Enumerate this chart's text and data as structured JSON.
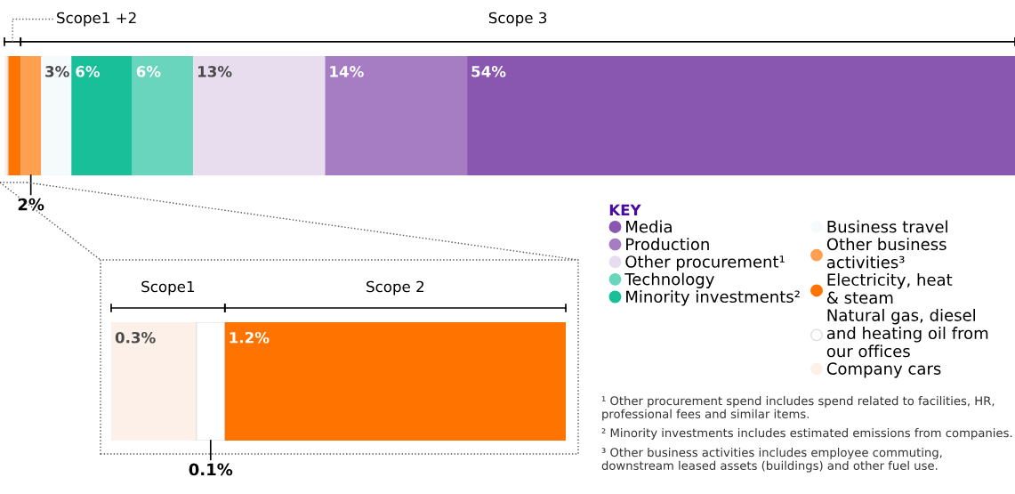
{
  "chart_data": [
    {
      "type": "bar",
      "orientation": "horizontal",
      "stacked": true,
      "categories": [
        null
      ],
      "legend": "bottom right",
      "legend_title": "KEY",
      "annotations": [
        "Scope1 +2",
        "Scope 3",
        "¹ Other procurement spend includes spend related to facilities, HR, professional fees and similar items.",
        "² Minority investments includes estimated emissions from companies.",
        "³ Other business activities includes employee commuting, downstream leased assets (buildings) and other fuel use."
      ],
      "series": [
        {
          "name": "Company cars",
          "color": "#fdf0e8",
          "values": [
            0.3
          ],
          "value_labels": [
            null
          ]
        },
        {
          "name": "Natural gas, diesel\nand heating oil from\nour offices",
          "color": "#ffffff",
          "values": [
            0.1
          ],
          "value_labels": [
            null
          ]
        },
        {
          "name": "Electricity, heat\n& steam",
          "color": "#ff7300",
          "values": [
            1.2
          ],
          "value_labels": [
            null
          ]
        },
        {
          "name": "Other business\nactivities³",
          "color": "#ffa050",
          "values": [
            2
          ],
          "value_labels": [
            "2%"
          ]
        },
        {
          "name": "Business travel",
          "color": "#f5fbfa",
          "values": [
            3
          ],
          "value_labels": [
            "3%"
          ]
        },
        {
          "name": "Minority investments²",
          "color": "#18bf98",
          "values": [
            6
          ],
          "value_labels": [
            "6%"
          ]
        },
        {
          "name": "Technology",
          "color": "#68d5bc",
          "values": [
            6
          ],
          "value_labels": [
            "6%"
          ]
        },
        {
          "name": "Other procurement¹",
          "color": "#e8ddef",
          "values": [
            13
          ],
          "value_labels": [
            "13%"
          ]
        },
        {
          "name": "Production",
          "color": "#a67cc2",
          "values": [
            14
          ],
          "value_labels": [
            "14%"
          ]
        },
        {
          "name": "Media",
          "color": "#8a57b0",
          "values": [
            54
          ],
          "value_labels": [
            "54%"
          ]
        }
      ]
    },
    {
      "type": "bar",
      "orientation": "horizontal",
      "stacked": true,
      "categories": [
        null
      ],
      "annotations": [
        "Scope1",
        "Scope 2"
      ],
      "series": [
        {
          "color": "#fdf0e8",
          "values": [
            0.3
          ],
          "value_labels": [
            "0.3%"
          ]
        },
        {
          "color": "#ffffff",
          "values": [
            0.1
          ],
          "value_labels": [
            "0.1%"
          ]
        },
        {
          "color": "#ff7300",
          "values": [
            1.2
          ],
          "value_labels": [
            "1.2%"
          ]
        }
      ]
    }
  ]
}
